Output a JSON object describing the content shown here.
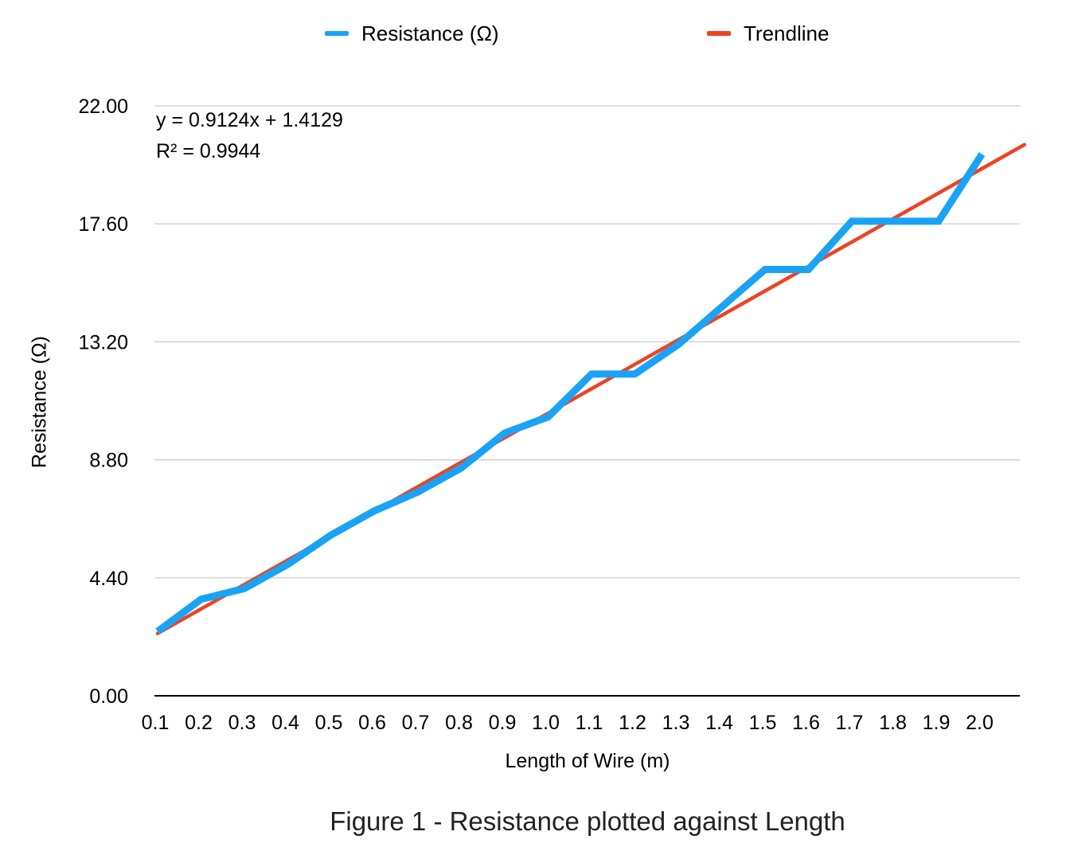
{
  "chart_data": {
    "type": "line",
    "caption": "Figure 1 - Resistance plotted against Length",
    "xlabel": "Length of Wire (m)",
    "ylabel": "Resistance (Ω)",
    "categories": [
      "0.1",
      "0.2",
      "0.3",
      "0.4",
      "0.5",
      "0.6",
      "0.7",
      "0.8",
      "0.9",
      "1.0",
      "1.1",
      "1.2",
      "1.3",
      "1.4",
      "1.5",
      "1.6",
      "1.7",
      "1.8",
      "1.9",
      "2.0"
    ],
    "yticks": [
      "0.00",
      "4.40",
      "8.80",
      "13.20",
      "17.60",
      "22.00"
    ],
    "ylim": [
      0,
      22
    ],
    "grid": true,
    "legend_position": "top",
    "series": [
      {
        "name": "Resistance (Ω)",
        "color": "#1AA3F5",
        "values": [
          2.4,
          3.6,
          4.0,
          4.9,
          6.0,
          6.9,
          7.6,
          8.5,
          9.8,
          10.4,
          12.0,
          12.0,
          13.1,
          14.5,
          15.9,
          15.9,
          17.7,
          17.7,
          17.7,
          20.2
        ]
      },
      {
        "name": "Trendline",
        "color": "#EE4322",
        "type": "linear-fit",
        "slope": 0.9124,
        "intercept": 1.4129
      }
    ],
    "annotations": [
      "y = 0.9124x + 1.4129",
      "R² = 0.9944"
    ]
  }
}
